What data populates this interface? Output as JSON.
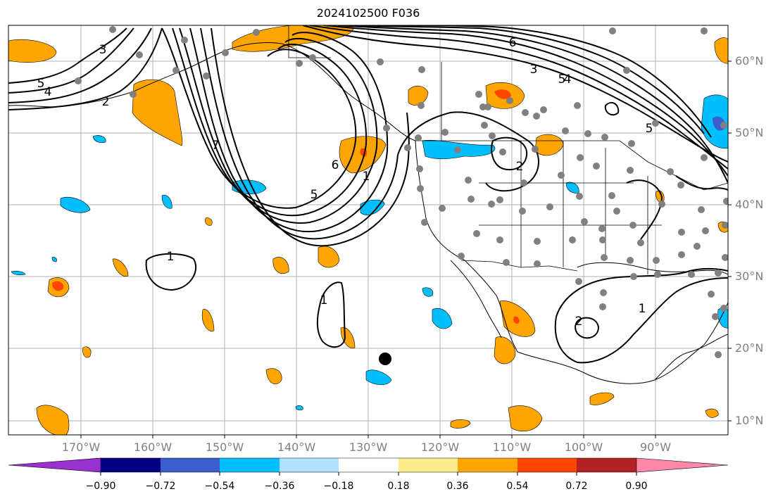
{
  "title": "2024102500 F036",
  "lat_labels": [
    "60°N",
    "50°N",
    "40°N",
    "30°N",
    "20°N",
    "10°N"
  ],
  "lon_labels": [
    "170°W",
    "160°W",
    "150°W",
    "140°W",
    "130°W",
    "120°W",
    "110°W",
    "100°W",
    "90°W"
  ],
  "contour_labels": [
    "3",
    "5",
    "4",
    "2",
    "7",
    "6",
    "5",
    "1",
    "1",
    "1",
    "6",
    "5",
    "3",
    "4",
    "2",
    "2",
    "5",
    "1"
  ],
  "colorbar": {
    "labels": [
      "−0.90",
      "−0.72",
      "−0.54",
      "−0.36",
      "−0.18",
      "0.18",
      "0.36",
      "0.54",
      "0.72",
      "0.90"
    ],
    "colors": [
      "#9b30d0",
      "#000080",
      "#3a5fcd",
      "#00bfff",
      "#b0e2ff",
      "#ffffff",
      "#fcec8c",
      "#ffa500",
      "#ff4500",
      "#b22222",
      "#ff88aa"
    ]
  },
  "colors": {
    "positive_fill": "#ffa500",
    "strong_positive_fill": "#ff4500",
    "negative_fill": "#00bfff",
    "strong_negative_fill": "#3a5fcd",
    "station_dot": "#808080",
    "contour": "#000000",
    "grid": "#b0b0b0"
  }
}
